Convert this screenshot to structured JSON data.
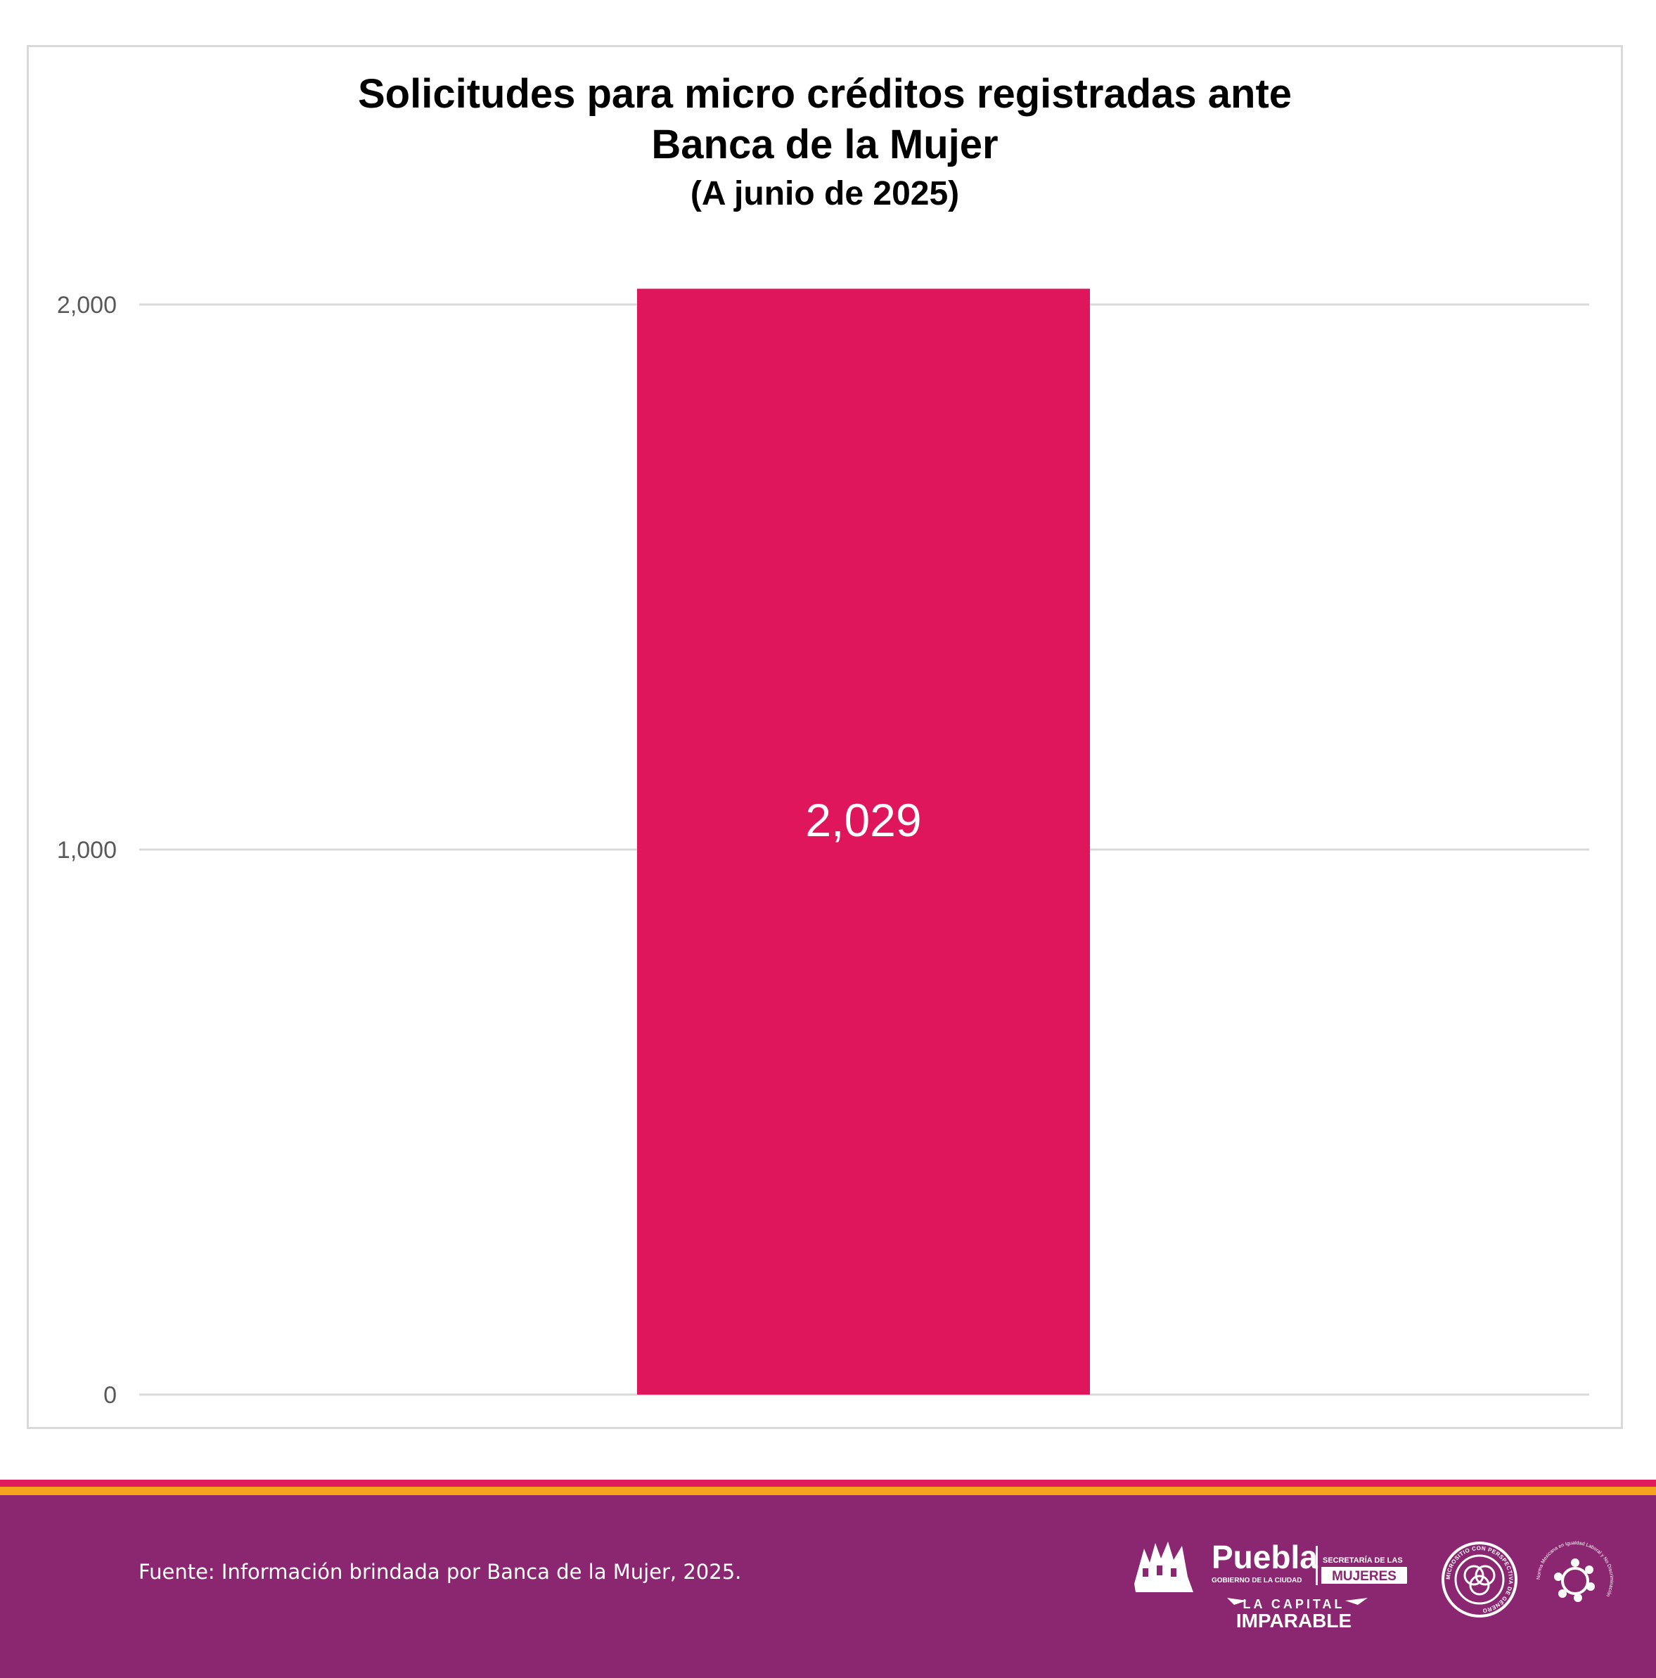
{
  "chart_data": {
    "type": "bar",
    "title": "Solicitudes para micro créditos registradas ante Banca de la Mujer",
    "title_lines": [
      "Solicitudes para micro créditos registradas ante",
      "Banca de la Mujer"
    ],
    "subtitle": "(A junio de 2025)",
    "categories": [
      ""
    ],
    "values": [
      2029
    ],
    "value_labels": [
      "2,029"
    ],
    "ylim": [
      0,
      2000
    ],
    "yticks": [
      0,
      1000,
      2000
    ],
    "ytick_labels": [
      "0",
      "1,000",
      "2,000"
    ],
    "xlabel": "",
    "ylabel": "",
    "grid": true,
    "legend": "none",
    "bar_color": "#e0165d"
  },
  "footer": {
    "source": "Fuente: Información brindada por Banca de la Mujer, 2025.",
    "logo_puebla": {
      "name": "Puebla",
      "tagline": "GOBIERNO DE LA CIUDAD",
      "secretaria": "SECRETARÍA DE LAS",
      "mujeres": "MUJERES",
      "slogan_top": "LA CAPITAL",
      "slogan_bottom": "IMPARABLE"
    },
    "seal_text": "MICROSITIO CON PERSPECTIVA DE GÉNERO",
    "norma_text": "Norma Mexicana en Igualdad Laboral y No Discriminación"
  },
  "colors": {
    "bar": "#e0165d",
    "grid": "#d9d9d9",
    "footer_bg": "#8b2770",
    "stripe_pink": "#e11a5e",
    "stripe_orange": "#f7a21b"
  }
}
